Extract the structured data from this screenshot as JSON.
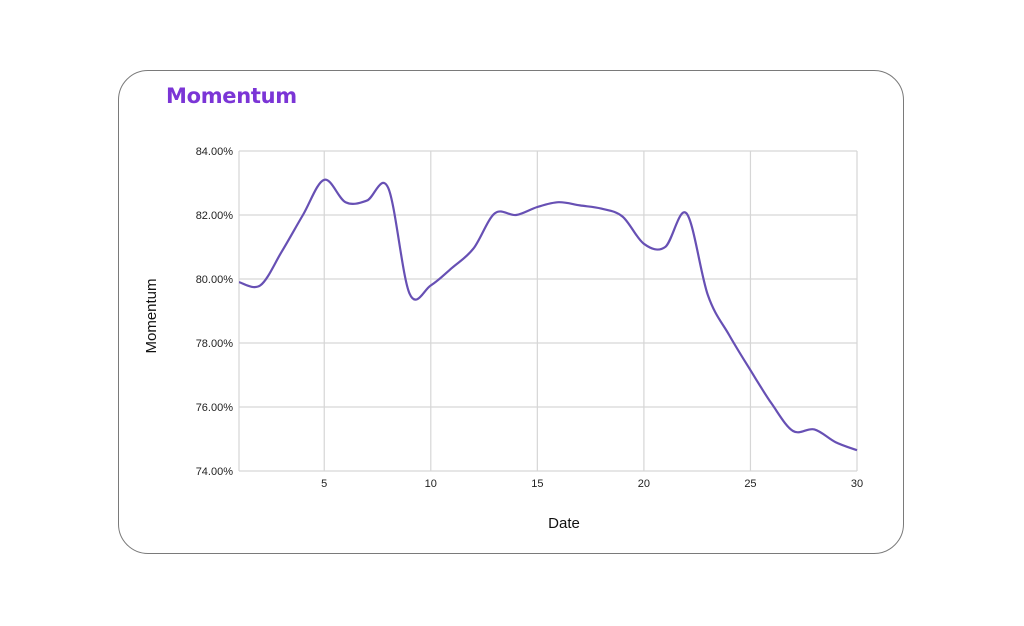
{
  "card": {
    "title": "Momentum"
  },
  "chart_data": {
    "type": "line",
    "title": "",
    "xlabel": "Date",
    "ylabel": "Momentum",
    "xlim": [
      1,
      30
    ],
    "ylim": [
      74,
      84
    ],
    "x_ticks": [
      5,
      10,
      15,
      20,
      25,
      30
    ],
    "y_ticks": [
      74,
      76,
      78,
      80,
      82,
      84
    ],
    "y_tick_labels": [
      "74.00%",
      "76.00%",
      "78.00%",
      "80.00%",
      "82.00%",
      "84.00%"
    ],
    "grid": true,
    "line_color": "#6750b4",
    "series": [
      {
        "x": [
          1,
          2,
          3,
          4,
          5,
          6,
          7,
          8,
          9,
          10,
          11,
          12,
          13,
          14,
          15,
          16,
          17,
          18,
          19,
          20,
          21,
          22,
          23,
          24,
          25,
          26,
          27,
          28,
          29,
          30
        ],
        "values": [
          79.9,
          79.8,
          80.85,
          82.0,
          83.1,
          82.4,
          82.45,
          82.85,
          79.55,
          79.8,
          80.35,
          80.95,
          82.05,
          82.0,
          82.25,
          82.4,
          82.3,
          82.2,
          81.95,
          81.1,
          81.0,
          82.05,
          79.5,
          78.25,
          77.15,
          76.1,
          75.25,
          75.3,
          74.9,
          74.65
        ]
      }
    ]
  }
}
